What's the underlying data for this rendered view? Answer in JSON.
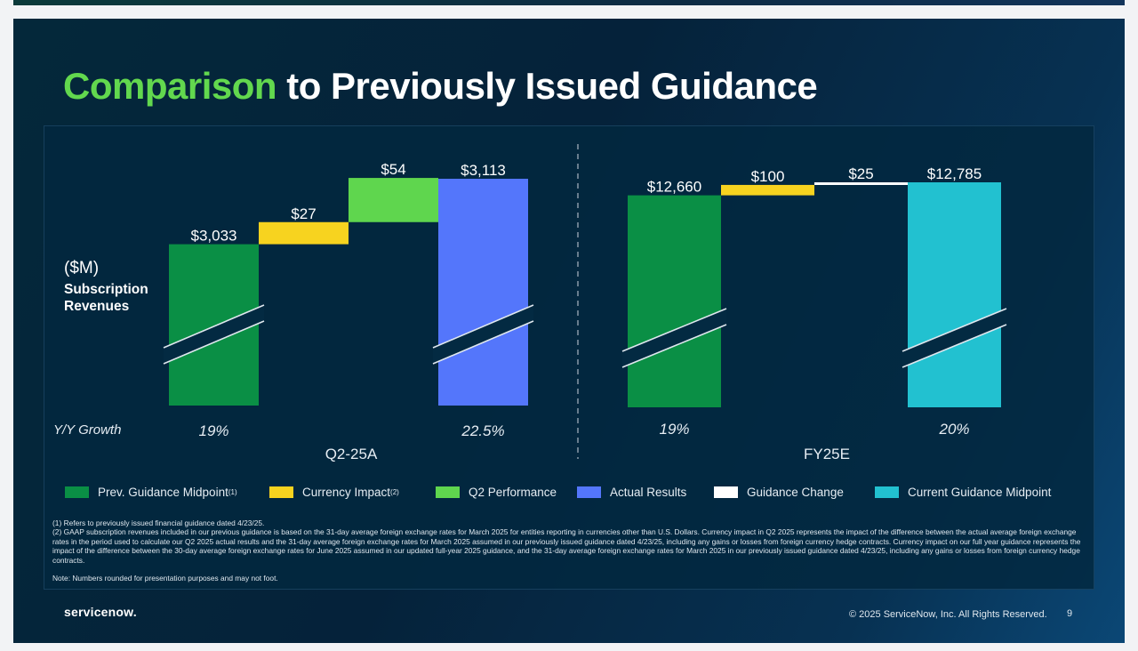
{
  "slide": {
    "title_accent": "Comparison",
    "title_rest": "to Previously Issued Guidance",
    "unit_label": "($M)",
    "metric_label_1": "Subscription",
    "metric_label_2": "Revenues",
    "yy_label": "Y/Y Growth",
    "footnotes": [
      "(1) Refers to previously issued financial guidance dated 4/23/25.",
      "(2) GAAP subscription revenues included in our previous guidance is based on the 31-day average foreign exchange rates for March 2025 for entities reporting in currencies other than U.S. Dollars. Currency impact in Q2 2025 represents the impact of the difference between the actual average foreign exchange rates in the period used to calculate our Q2 2025 actual results and the 31-day average foreign exchange rates for March 2025 assumed in our previously issued guidance dated 4/23/25, including any gains or losses from foreign currency hedge contracts. Currency impact on our full year guidance represents the impact of the difference between the 30-day average foreign exchange rates for June 2025 assumed in our updated full-year 2025 guidance, and the 31-day average foreign exchange rates for March 2025 in our previously issued guidance dated 4/23/25, including any gains or losses from foreign currency hedge contracts."
    ],
    "note": "Note: Numbers rounded for presentation purposes and may not foot.",
    "logo_text": "servicenow.",
    "copyright": "© 2025 ServiceNow, Inc. All Rights Reserved.",
    "page_number": "9"
  },
  "chart_data": {
    "type": "bar",
    "subtype": "waterfall",
    "ylabel": "($M) Subscription Revenues",
    "axis_break": true,
    "legend": [
      {
        "name": "Prev. Guidance Midpoint",
        "sup": "(1)",
        "color": "#0a8f45"
      },
      {
        "name": "Currency Impact",
        "sup": "(2)",
        "color": "#f7d31f"
      },
      {
        "name": "Q2 Performance",
        "sup": "",
        "color": "#5fd64e"
      },
      {
        "name": "Actual Results",
        "sup": "",
        "color": "#5476fb"
      },
      {
        "name": "Guidance Change",
        "sup": "",
        "color": "#ffffff"
      },
      {
        "name": "Current Guidance Midpoint",
        "sup": "",
        "color": "#22c1d0"
      }
    ],
    "groups": [
      {
        "name": "Q2-25A",
        "bars": [
          {
            "series": "Prev. Guidance Midpoint",
            "value": 3033,
            "label": "$3,033",
            "kind": "total",
            "growth": "19%"
          },
          {
            "series": "Currency Impact",
            "value": 27,
            "label": "$27",
            "kind": "delta"
          },
          {
            "series": "Q2 Performance",
            "value": 54,
            "label": "$54",
            "kind": "delta"
          },
          {
            "series": "Actual Results",
            "value": 3113,
            "label": "$3,113",
            "kind": "total",
            "growth": "22.5%"
          }
        ]
      },
      {
        "name": "FY25E",
        "bars": [
          {
            "series": "Prev. Guidance Midpoint",
            "value": 12660,
            "label": "$12,660",
            "kind": "total",
            "growth": "19%"
          },
          {
            "series": "Currency Impact",
            "value": 100,
            "label": "$100",
            "kind": "delta"
          },
          {
            "series": "Guidance Change",
            "value": 25,
            "label": "$25",
            "kind": "delta"
          },
          {
            "series": "Current Guidance Midpoint",
            "value": 12785,
            "label": "$12,785",
            "kind": "total",
            "growth": "20%"
          }
        ]
      }
    ]
  }
}
